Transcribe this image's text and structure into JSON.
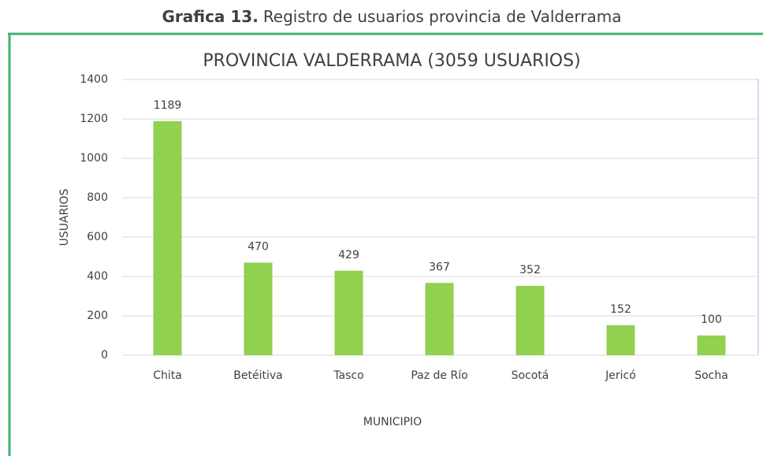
{
  "caption": {
    "label": "Grafica 13.",
    "text": "Registro de usuarios provincia de Valderrama"
  },
  "chart_data": {
    "type": "bar",
    "title": "PROVINCIA VALDERRAMA (3059 USUARIOS)",
    "x_label": "MUNICIPIO",
    "y_label": "USUARIOS",
    "categories": [
      "Chita",
      "Betéitiva",
      "Tasco",
      "Paz de Río",
      "Socotá",
      "Jericó",
      "Socha"
    ],
    "values": [
      1189,
      470,
      429,
      367,
      352,
      152,
      100
    ],
    "color": "#92d050",
    "ylim": [
      0,
      1400
    ],
    "yticks": [
      0,
      200,
      400,
      600,
      800,
      1000,
      1200,
      1400
    ],
    "grid": true
  }
}
